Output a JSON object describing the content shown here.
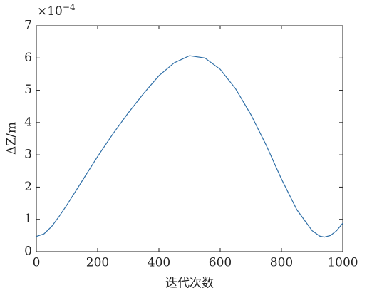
{
  "chart_data": {
    "type": "line",
    "x_label": "迭代次数",
    "y_label": "ΔZ/m",
    "y_multiplier_base": "×10",
    "y_multiplier_exponent": "−4",
    "x": [
      0,
      25,
      50,
      75,
      100,
      150,
      200,
      250,
      300,
      350,
      400,
      450,
      500,
      550,
      600,
      650,
      700,
      750,
      800,
      850,
      900,
      925,
      940,
      960,
      980,
      1000
    ],
    "series": [
      {
        "color": "#2f6fa7",
        "values": [
          0.47,
          0.55,
          0.78,
          1.1,
          1.45,
          2.2,
          2.95,
          3.65,
          4.3,
          4.9,
          5.45,
          5.85,
          6.07,
          6.0,
          5.65,
          5.05,
          4.25,
          3.3,
          2.25,
          1.3,
          0.65,
          0.48,
          0.45,
          0.5,
          0.65,
          0.88
        ]
      }
    ],
    "xlim": [
      0,
      1000
    ],
    "xticks": [
      0,
      200,
      400,
      600,
      800,
      1000
    ],
    "ylim": [
      0,
      7
    ],
    "yticks": [
      0,
      1,
      2,
      3,
      4,
      5,
      6,
      7
    ],
    "grid": false
  }
}
